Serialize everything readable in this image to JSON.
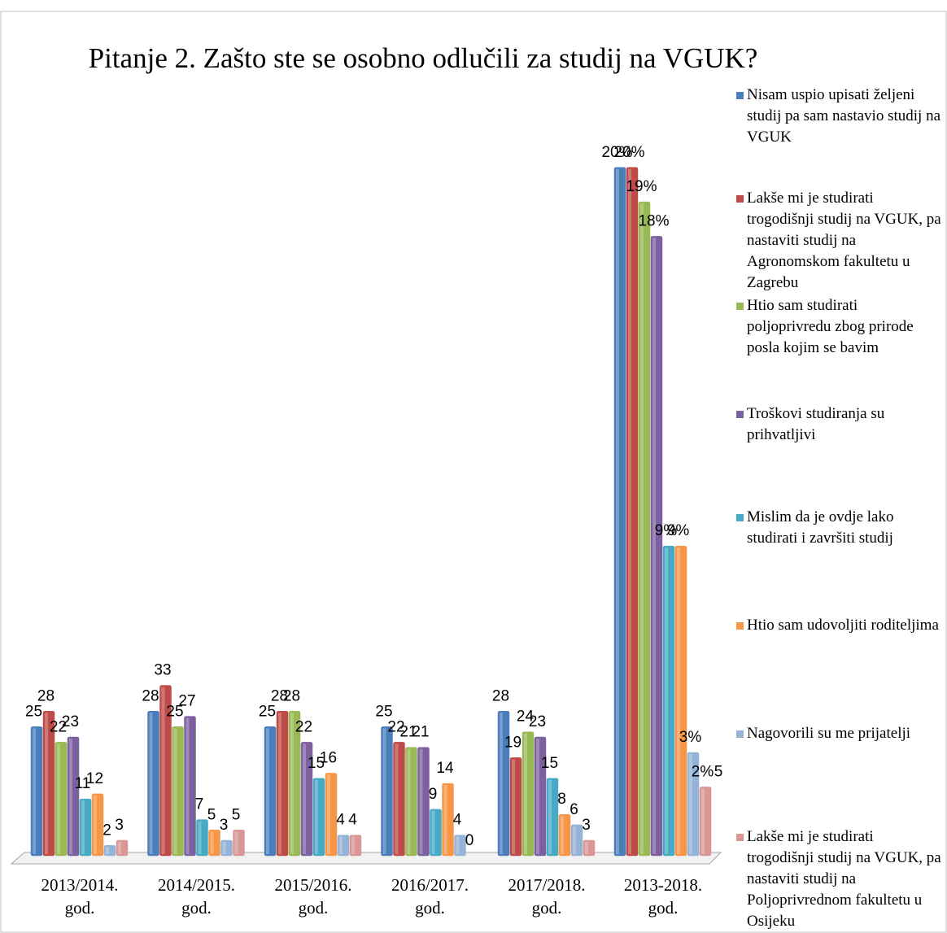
{
  "chart_data": [
    {
      "type": "bar",
      "title": "Pitanje 2. Zašto ste se osobno odlučili za studij na VGUK?",
      "categories": [
        "2013/2014. god.",
        "2014/2015. god.",
        "2015/2016. god.",
        "2016/2017. god.",
        "2017/2018. god."
      ],
      "ylim": [
        0,
        150
      ],
      "legend": "right",
      "series": [
        {
          "name": "Nisam uspio upisati željeni studij pa sam nastavio studij na VGUK",
          "color": "#4a7ebb",
          "values": [
            25,
            28,
            25,
            25,
            28
          ]
        },
        {
          "name": "Lakše mi je studirati trogodišnji studij na VGUK, pa nastaviti studij na Agronomskom fakultetu u Zagrebu",
          "color": "#be4b48",
          "values": [
            28,
            33,
            28,
            22,
            19
          ]
        },
        {
          "name": "Htio sam studirati poljoprivredu zbog prirode posla kojim se bavim",
          "color": "#98b954",
          "values": [
            22,
            25,
            28,
            21,
            24
          ]
        },
        {
          "name": "Troškovi studiranja su prihvatljivi",
          "color": "#7d60a0",
          "values": [
            23,
            27,
            22,
            21,
            23
          ]
        },
        {
          "name": "Mislim da je ovdje lako studirati i završiti studij",
          "color": "#46aac5",
          "values": [
            11,
            7,
            15,
            9,
            15
          ]
        },
        {
          "name": "Htio sam udovoljiti roditeljima",
          "color": "#f79646",
          "values": [
            12,
            5,
            16,
            14,
            8
          ]
        },
        {
          "name": "Nagovorili su me prijatelji",
          "color": "#95b3d7",
          "values": [
            2,
            3,
            4,
            4,
            6
          ]
        },
        {
          "name": "Lakše mi je studirati trogodišnji studij na VGUK, pa nastaviti studij na Poljoprivrednom fakultetu u Osijeku",
          "color": "#d99694",
          "values": [
            3,
            5,
            4,
            0,
            3
          ]
        }
      ]
    },
    {
      "type": "bar",
      "categories": [
        "2013-2018. god."
      ],
      "ylim": [
        0,
        22.5
      ],
      "annotation": "5",
      "series": [
        {
          "color": "#4a7ebb",
          "values": [
            20
          ],
          "value_labels": [
            "20%"
          ]
        },
        {
          "color": "#be4b48",
          "values": [
            20
          ],
          "value_labels": [
            "20%"
          ]
        },
        {
          "color": "#98b954",
          "values": [
            19
          ],
          "value_labels": [
            "19%"
          ]
        },
        {
          "color": "#7d60a0",
          "values": [
            18
          ],
          "value_labels": [
            "18%"
          ]
        },
        {
          "color": "#46aac5",
          "values": [
            9
          ],
          "value_labels": [
            "9%"
          ]
        },
        {
          "color": "#f79646",
          "values": [
            9
          ],
          "value_labels": [
            "9%"
          ]
        },
        {
          "color": "#95b3d7",
          "values": [
            3
          ],
          "value_labels": [
            "3%"
          ]
        },
        {
          "color": "#d99694",
          "values": [
            2
          ],
          "value_labels": [
            "2%"
          ]
        }
      ]
    }
  ]
}
